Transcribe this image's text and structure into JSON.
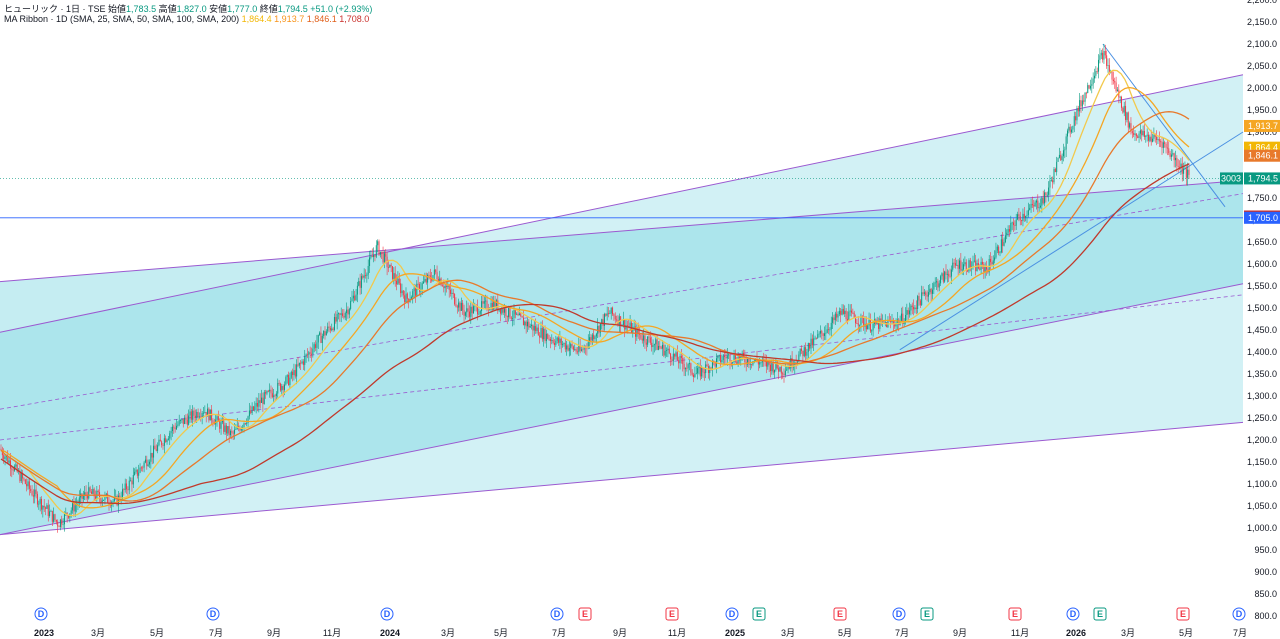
{
  "legend": {
    "symbol": "ヒューリック · 1日 · TSE",
    "open_label": "始値",
    "open": "1,783.5",
    "high_label": "高値",
    "high": "1,827.0",
    "low_label": "安値",
    "low": "1,777.0",
    "close_label": "終値",
    "close": "1,794.5",
    "change": "+51.0 (+2.93%)",
    "ma_label": "MA Ribbon · 1D (SMA, 25, SMA, 50, SMA, 100, SMA, 200)",
    "ma_values": [
      "1,864.4",
      "1,913.7",
      "1,846.1",
      "1,708.0"
    ]
  },
  "colors": {
    "up": "#089981",
    "down": "#f23645",
    "ma25": "#f2c94c",
    "ma50": "#f5a623",
    "ma100": "#e8792b",
    "ma200": "#c0392b",
    "channel_fill": "#7fd6e3",
    "channel_line": "#9b59d0",
    "trend_blue": "#4a90e2"
  },
  "chart_data": {
    "type": "candlestick",
    "ylim": [
      800,
      2200
    ],
    "y_ticks": [
      "2,200.0",
      "2,150.0",
      "2,100.0",
      "2,050.0",
      "2,000.0",
      "1,950.0",
      "1,900.0",
      "1,850.0",
      "1,800.0",
      "1,750.0",
      "1,700.0",
      "1,650.0",
      "1,600.0",
      "1,550.0",
      "1,500.0",
      "1,450.0",
      "1,400.0",
      "1,350.0",
      "1,300.0",
      "1,250.0",
      "1,200.0",
      "1,150.0",
      "1,100.0",
      "1,050.0",
      "1,000.0",
      "950.0",
      "900.0",
      "850.0",
      "800.0"
    ],
    "x_labels": [
      {
        "label": "2023",
        "year": true
      },
      {
        "label": "3月"
      },
      {
        "label": "5月"
      },
      {
        "label": "7月"
      },
      {
        "label": "9月"
      },
      {
        "label": "11月"
      },
      {
        "label": "2024",
        "year": true
      },
      {
        "label": "3月"
      },
      {
        "label": "5月"
      },
      {
        "label": "7月"
      },
      {
        "label": "9月"
      },
      {
        "label": "11月"
      },
      {
        "label": "2025",
        "year": true
      },
      {
        "label": "3月"
      },
      {
        "label": "5月"
      },
      {
        "label": "7月"
      },
      {
        "label": "9月"
      },
      {
        "label": "11月"
      },
      {
        "label": "2026",
        "year": true
      },
      {
        "label": "3月"
      },
      {
        "label": "5月"
      },
      {
        "label": "7月"
      }
    ],
    "price_path": [
      [
        "2022-12",
        1180
      ],
      [
        "2023-01",
        1090
      ],
      [
        "2023-02",
        1010
      ],
      [
        "2023-03",
        1080
      ],
      [
        "2023-04",
        1060
      ],
      [
        "2023-05",
        1150
      ],
      [
        "2023-06",
        1230
      ],
      [
        "2023-07",
        1270
      ],
      [
        "2023-08",
        1210
      ],
      [
        "2023-09",
        1290
      ],
      [
        "2023-10",
        1340
      ],
      [
        "2023-11",
        1430
      ],
      [
        "2023-12",
        1500
      ],
      [
        "2024-01",
        1640
      ],
      [
        "2024-02",
        1520
      ],
      [
        "2024-03",
        1580
      ],
      [
        "2024-04",
        1490
      ],
      [
        "2024-05",
        1510
      ],
      [
        "2024-06",
        1470
      ],
      [
        "2024-07",
        1430
      ],
      [
        "2024-08",
        1400
      ],
      [
        "2024-09",
        1490
      ],
      [
        "2024-10",
        1440
      ],
      [
        "2024-11",
        1400
      ],
      [
        "2024-12",
        1350
      ],
      [
        "2025-01",
        1390
      ],
      [
        "2025-02",
        1380
      ],
      [
        "2025-03",
        1360
      ],
      [
        "2025-04",
        1420
      ],
      [
        "2025-05",
        1490
      ],
      [
        "2025-06",
        1460
      ],
      [
        "2025-07",
        1470
      ],
      [
        "2025-08",
        1540
      ],
      [
        "2025-09",
        1600
      ],
      [
        "2025-10",
        1590
      ],
      [
        "2025-11",
        1700
      ],
      [
        "2025-12",
        1750
      ],
      [
        "2026-01",
        1930
      ],
      [
        "2026-02",
        2080
      ],
      [
        "2026-03",
        1900
      ],
      [
        "2026-04",
        1880
      ],
      [
        "2026-05",
        1794.5
      ]
    ],
    "price_tags": [
      {
        "label": "1,913.7",
        "value": 1913.7,
        "color": "#f5a623"
      },
      {
        "label": "1,864.4",
        "value": 1864.4,
        "color": "#f2b705"
      },
      {
        "label": "1,846.1",
        "value": 1846.1,
        "color": "#e8792b"
      },
      {
        "label": "1,794.5",
        "value": 1794.5,
        "color": "#089981",
        "symbol": "3003"
      },
      {
        "label": "1,708.0",
        "value": 1708.0,
        "color": "#c9302c"
      },
      {
        "label": "1,705.0",
        "value": 1705.0,
        "color": "#2962ff"
      }
    ],
    "events": [
      "D",
      "D",
      "D",
      "D",
      "E",
      "E",
      "D",
      "E",
      "E",
      "D",
      "E",
      "E",
      "D",
      "E",
      "E",
      "D"
    ]
  }
}
